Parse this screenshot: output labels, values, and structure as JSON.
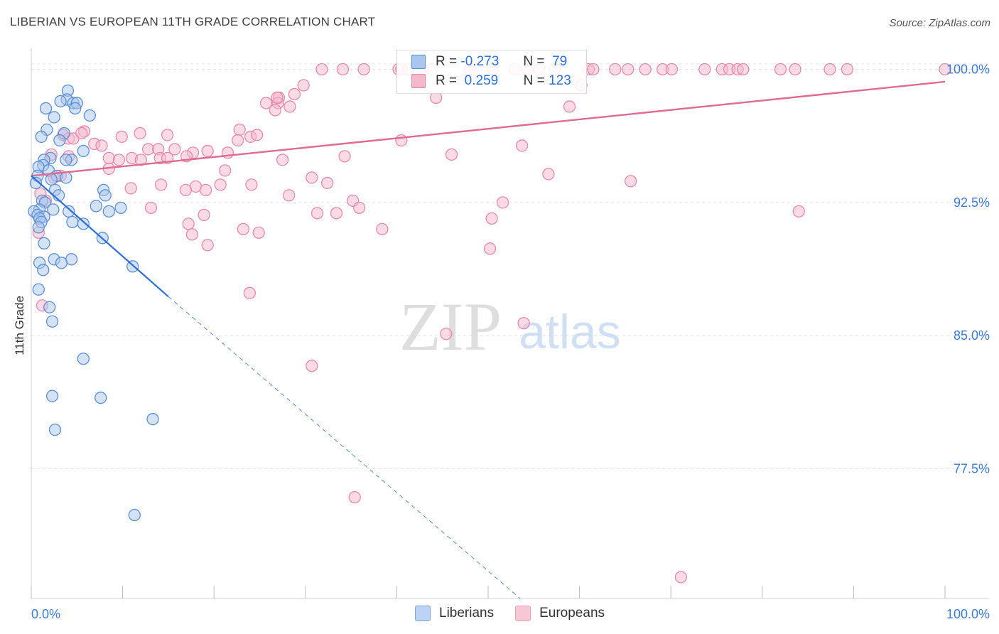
{
  "title": "LIBERIAN VS EUROPEAN 11TH GRADE CORRELATION CHART",
  "source": "Source: ZipAtlas.com",
  "watermark": {
    "zip": "ZIP",
    "atlas": "atlas"
  },
  "legend": {
    "rows": [
      {
        "r_label": "R =",
        "r_value": "-0.273",
        "n_label": "N =",
        "n_value": "79"
      },
      {
        "r_label": "R =",
        "r_value": "0.259",
        "n_label": "N =",
        "n_value": "123"
      }
    ]
  },
  "bottom_legend": [
    "Liberians",
    "Europeans"
  ],
  "colors": {
    "liberians_fill": "#a9c6ee",
    "liberians_stroke": "#5b8fd6",
    "liberians_line": "#2e6fd8",
    "europeans_fill": "#f5b7cb",
    "europeans_stroke": "#e889a8",
    "europeans_line": "#e06a93",
    "tick_label": "#3d7bd8",
    "grid": "#e3e3e3"
  },
  "chart_data": {
    "type": "scatter",
    "title": "LIBERIAN VS EUROPEAN 11TH GRADE CORRELATION CHART",
    "xlabel": "",
    "ylabel": "11th Grade",
    "xlim": [
      0,
      100
    ],
    "ylim": [
      70.2,
      100.7
    ],
    "x_tick_labels": [
      "0.0%",
      "100.0%"
    ],
    "y_ticks": [
      100.0,
      92.5,
      85.0,
      77.5
    ],
    "y_tick_labels": [
      "100.0%",
      "92.5%",
      "85.0%",
      "77.5%"
    ],
    "series": [
      {
        "name": "Liberians",
        "r": -0.273,
        "n": 79,
        "trend": {
          "x0": 0.0,
          "y0": 94.0,
          "x1": 15.0,
          "y1": 87.2,
          "dash_x1": 53.5,
          "dash_y1": 70.2
        },
        "points": [
          [
            4.0,
            98.8
          ],
          [
            3.9,
            98.3
          ],
          [
            4.6,
            98.1
          ],
          [
            5.0,
            98.1
          ],
          [
            3.2,
            98.2
          ],
          [
            1.6,
            97.8
          ],
          [
            4.8,
            97.8
          ],
          [
            6.4,
            97.4
          ],
          [
            2.5,
            97.3
          ],
          [
            1.7,
            96.6
          ],
          [
            3.6,
            96.4
          ],
          [
            1.1,
            96.2
          ],
          [
            3.1,
            96.0
          ],
          [
            5.7,
            95.4
          ],
          [
            2.1,
            95.0
          ],
          [
            1.4,
            94.9
          ],
          [
            4.4,
            94.9
          ],
          [
            3.8,
            94.9
          ],
          [
            1.3,
            94.6
          ],
          [
            0.8,
            94.5
          ],
          [
            1.9,
            94.3
          ],
          [
            0.7,
            94.0
          ],
          [
            2.8,
            94.0
          ],
          [
            3.8,
            93.9
          ],
          [
            2.2,
            93.8
          ],
          [
            0.5,
            93.6
          ],
          [
            2.6,
            93.2
          ],
          [
            7.9,
            93.2
          ],
          [
            8.1,
            92.9
          ],
          [
            3.0,
            92.9
          ],
          [
            1.2,
            92.6
          ],
          [
            1.5,
            92.5
          ],
          [
            7.1,
            92.3
          ],
          [
            9.8,
            92.2
          ],
          [
            0.9,
            92.1
          ],
          [
            2.4,
            92.1
          ],
          [
            4.1,
            92.0
          ],
          [
            0.3,
            92.0
          ],
          [
            0.7,
            91.8
          ],
          [
            8.5,
            92.0
          ],
          [
            1.4,
            91.7
          ],
          [
            0.9,
            91.6
          ],
          [
            1.1,
            91.4
          ],
          [
            4.5,
            91.4
          ],
          [
            5.7,
            91.3
          ],
          [
            0.8,
            91.1
          ],
          [
            7.8,
            90.5
          ],
          [
            1.4,
            90.2
          ],
          [
            2.5,
            89.3
          ],
          [
            4.4,
            89.3
          ],
          [
            3.3,
            89.1
          ],
          [
            0.9,
            89.1
          ],
          [
            11.1,
            88.9
          ],
          [
            1.3,
            88.7
          ],
          [
            0.8,
            87.6
          ],
          [
            2.0,
            86.6
          ],
          [
            2.3,
            85.8
          ],
          [
            5.7,
            83.7
          ],
          [
            2.3,
            81.6
          ],
          [
            7.6,
            81.5
          ],
          [
            13.3,
            80.3
          ],
          [
            2.6,
            79.7
          ],
          [
            11.3,
            74.9
          ]
        ]
      },
      {
        "name": "Europeans",
        "r": 0.259,
        "n": 123,
        "trend": {
          "x0": 0.0,
          "y0": 94.0,
          "x1": 100.0,
          "y1": 99.3
        },
        "points": [
          [
            31.8,
            100.0
          ],
          [
            34.1,
            100.0
          ],
          [
            36.4,
            100.0
          ],
          [
            40.2,
            100.0
          ],
          [
            40.5,
            100.0
          ],
          [
            41.3,
            100.0
          ],
          [
            42.9,
            100.0
          ],
          [
            43.8,
            100.0
          ],
          [
            48.0,
            100.0
          ],
          [
            48.6,
            100.0
          ],
          [
            50.5,
            100.0
          ],
          [
            52.9,
            100.0
          ],
          [
            54.3,
            100.0
          ],
          [
            55.6,
            100.0
          ],
          [
            57.3,
            100.0
          ],
          [
            61.0,
            100.0
          ],
          [
            61.5,
            100.0
          ],
          [
            63.9,
            100.0
          ],
          [
            65.3,
            100.0
          ],
          [
            67.2,
            100.0
          ],
          [
            69.1,
            100.0
          ],
          [
            70.1,
            100.0
          ],
          [
            73.7,
            100.0
          ],
          [
            75.6,
            100.0
          ],
          [
            76.4,
            100.0
          ],
          [
            77.3,
            100.0
          ],
          [
            77.9,
            100.0
          ],
          [
            82.0,
            100.0
          ],
          [
            83.6,
            100.0
          ],
          [
            87.4,
            100.0
          ],
          [
            89.3,
            100.0
          ],
          [
            100.0,
            100.0
          ],
          [
            29.8,
            99.1
          ],
          [
            60.2,
            99.1
          ],
          [
            28.8,
            98.6
          ],
          [
            44.3,
            98.4
          ],
          [
            27.1,
            98.4
          ],
          [
            25.7,
            98.1
          ],
          [
            27.0,
            98.1
          ],
          [
            28.3,
            97.9
          ],
          [
            26.7,
            97.7
          ],
          [
            58.9,
            97.9
          ],
          [
            22.8,
            96.6
          ],
          [
            5.8,
            96.5
          ],
          [
            11.9,
            96.4
          ],
          [
            9.9,
            96.2
          ],
          [
            3.5,
            96.3
          ],
          [
            4.1,
            96.1
          ],
          [
            4.6,
            96.1
          ],
          [
            24.0,
            96.2
          ],
          [
            24.7,
            96.3
          ],
          [
            22.6,
            96.0
          ],
          [
            5.5,
            96.4
          ],
          [
            14.9,
            96.3
          ],
          [
            40.5,
            96.0
          ],
          [
            6.9,
            95.8
          ],
          [
            7.7,
            95.7
          ],
          [
            53.7,
            95.7
          ],
          [
            12.8,
            95.5
          ],
          [
            13.9,
            95.5
          ],
          [
            15.7,
            95.5
          ],
          [
            17.7,
            95.3
          ],
          [
            19.3,
            95.4
          ],
          [
            21.5,
            95.3
          ],
          [
            2.2,
            95.2
          ],
          [
            4.1,
            95.1
          ],
          [
            11.0,
            95.0
          ],
          [
            14.1,
            95.0
          ],
          [
            14.9,
            95.0
          ],
          [
            8.5,
            95.0
          ],
          [
            9.6,
            94.9
          ],
          [
            12.0,
            94.9
          ],
          [
            17.0,
            95.1
          ],
          [
            27.5,
            94.9
          ],
          [
            34.3,
            95.1
          ],
          [
            46.0,
            95.2
          ],
          [
            8.5,
            94.4
          ],
          [
            21.2,
            94.3
          ],
          [
            3.2,
            94.0
          ],
          [
            56.6,
            94.1
          ],
          [
            30.7,
            93.9
          ],
          [
            65.6,
            93.7
          ],
          [
            14.2,
            93.5
          ],
          [
            10.9,
            93.3
          ],
          [
            18.0,
            93.4
          ],
          [
            20.7,
            93.5
          ],
          [
            24.1,
            93.5
          ],
          [
            32.4,
            93.6
          ],
          [
            16.9,
            93.2
          ],
          [
            19.1,
            93.2
          ],
          [
            28.2,
            92.9
          ],
          [
            35.2,
            92.6
          ],
          [
            51.6,
            92.5
          ],
          [
            13.1,
            92.2
          ],
          [
            35.9,
            92.2
          ],
          [
            31.3,
            91.9
          ],
          [
            33.4,
            91.9
          ],
          [
            18.9,
            91.8
          ],
          [
            50.4,
            91.6
          ],
          [
            17.2,
            91.3
          ],
          [
            23.2,
            91.0
          ],
          [
            38.4,
            91.0
          ],
          [
            24.9,
            90.8
          ],
          [
            17.6,
            90.7
          ],
          [
            19.3,
            90.1
          ],
          [
            50.2,
            89.9
          ],
          [
            0.8,
            90.8
          ],
          [
            1.0,
            93.0
          ],
          [
            1.6,
            92.6
          ],
          [
            2.5,
            93.9
          ],
          [
            23.9,
            87.4
          ],
          [
            53.9,
            85.7
          ],
          [
            45.4,
            85.1
          ],
          [
            30.7,
            83.3
          ],
          [
            35.4,
            75.9
          ],
          [
            71.1,
            71.4
          ],
          [
            84.0,
            92.0
          ],
          [
            26.9,
            98.4
          ],
          [
            1.2,
            86.7
          ]
        ]
      }
    ]
  }
}
